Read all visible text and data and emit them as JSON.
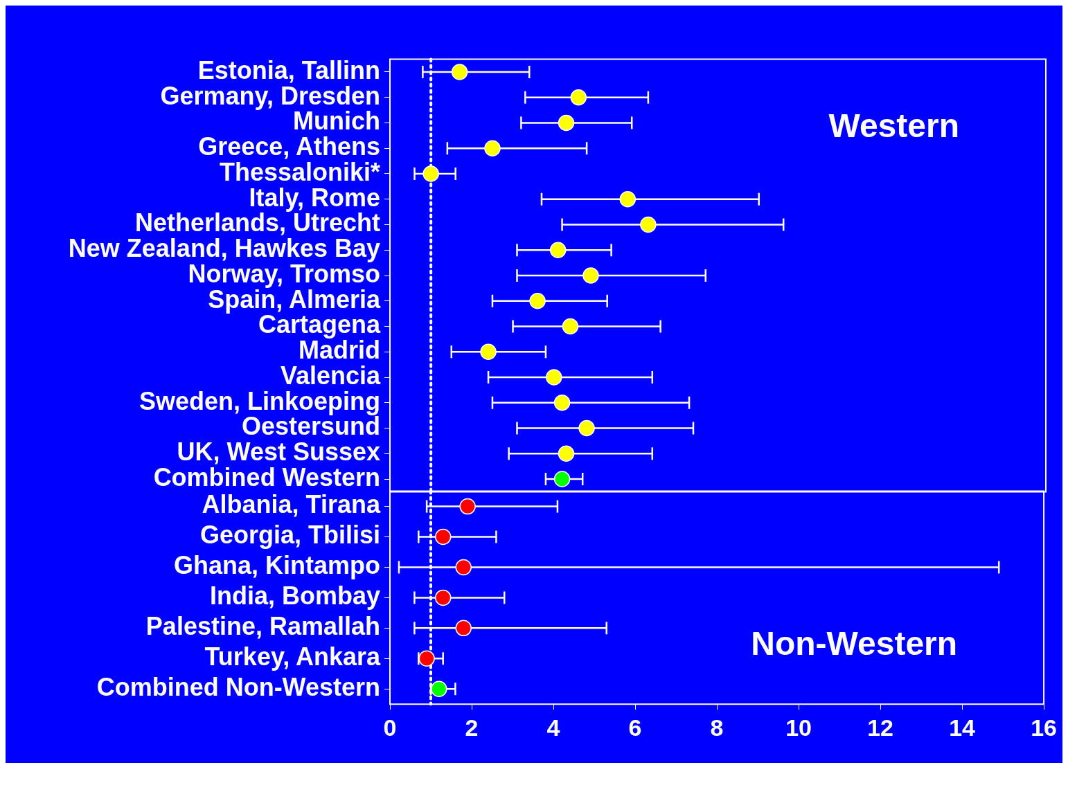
{
  "chart_data": [
    {
      "type": "scatter",
      "orientation": "horizontal",
      "categories": [
        "Estonia, Tallinn",
        "Germany, Dresden",
        "Munich",
        "Greece, Athens",
        "Thessaloniki*",
        "Italy, Rome",
        "Netherlands, Utrecht",
        "New Zealand, Hawkes Bay",
        "Norway, Tromso",
        "Spain, Almeria",
        "Cartagena",
        "Madrid",
        "Valencia",
        "Sweden, Linkoeping",
        "Oestersund",
        "UK, West Sussex",
        "Combined Western"
      ],
      "values": [
        1.7,
        4.6,
        4.3,
        2.5,
        1.0,
        5.8,
        6.3,
        4.1,
        4.9,
        3.6,
        4.4,
        2.4,
        4.0,
        4.2,
        4.8,
        4.3,
        4.2
      ],
      "errors": [
        [
          0.8,
          3.4
        ],
        [
          3.3,
          6.3
        ],
        [
          3.2,
          5.9
        ],
        [
          1.4,
          4.8
        ],
        [
          0.6,
          1.6
        ],
        [
          3.7,
          9.0
        ],
        [
          4.2,
          9.6
        ],
        [
          3.1,
          5.4
        ],
        [
          3.1,
          7.7
        ],
        [
          2.5,
          5.3
        ],
        [
          3.0,
          6.6
        ],
        [
          1.5,
          3.8
        ],
        [
          2.4,
          6.4
        ],
        [
          2.5,
          7.3
        ],
        [
          3.1,
          7.4
        ],
        [
          2.9,
          6.4
        ],
        [
          3.8,
          4.7
        ]
      ],
      "colors": [
        "#ffff00",
        "#ffff00",
        "#ffff00",
        "#ffff00",
        "#ffff00",
        "#ffff00",
        "#ffff00",
        "#ffff00",
        "#ffff00",
        "#ffff00",
        "#ffff00",
        "#ffff00",
        "#ffff00",
        "#ffff00",
        "#ffff00",
        "#ffff00",
        "#00ff00"
      ],
      "marker": "circle",
      "xlim": [
        0,
        16
      ],
      "xticks": [
        0,
        2,
        4,
        6,
        8,
        10,
        12,
        14,
        16
      ],
      "tick_labels": "y",
      "grid": false,
      "legend": false,
      "ref_lines": [
        {
          "axis": "x",
          "value": 1,
          "line_style": "dotted",
          "color": "#ffffff"
        }
      ],
      "annotations": [
        "Western"
      ]
    },
    {
      "type": "scatter",
      "orientation": "horizontal",
      "categories": [
        "Albania, Tirana",
        "Georgia, Tbilisi",
        "Ghana, Kintampo",
        "India, Bombay",
        "Palestine, Ramallah",
        "Turkey, Ankara",
        "Combined Non-Western"
      ],
      "values": [
        1.9,
        1.3,
        1.8,
        1.3,
        1.8,
        0.9,
        1.2
      ],
      "errors": [
        [
          0.9,
          4.1
        ],
        [
          0.7,
          2.6
        ],
        [
          0.22,
          14.9
        ],
        [
          0.6,
          2.8
        ],
        [
          0.6,
          5.3
        ],
        [
          0.7,
          1.3
        ],
        [
          1.0,
          1.6
        ]
      ],
      "colors": [
        "#ff0000",
        "#ff0000",
        "#ff0000",
        "#ff0000",
        "#ff0000",
        "#ff0000",
        "#00ff00"
      ],
      "marker": "circle",
      "xlim": [
        0,
        16
      ],
      "xticks": [
        0,
        2,
        4,
        6,
        8,
        10,
        12,
        14,
        16
      ],
      "grid": false,
      "legend": false,
      "ref_lines": [
        {
          "axis": "x",
          "value": 1,
          "line_style": "dotted",
          "color": "#ffffff"
        }
      ],
      "annotations": [
        "Non-Western"
      ]
    }
  ]
}
